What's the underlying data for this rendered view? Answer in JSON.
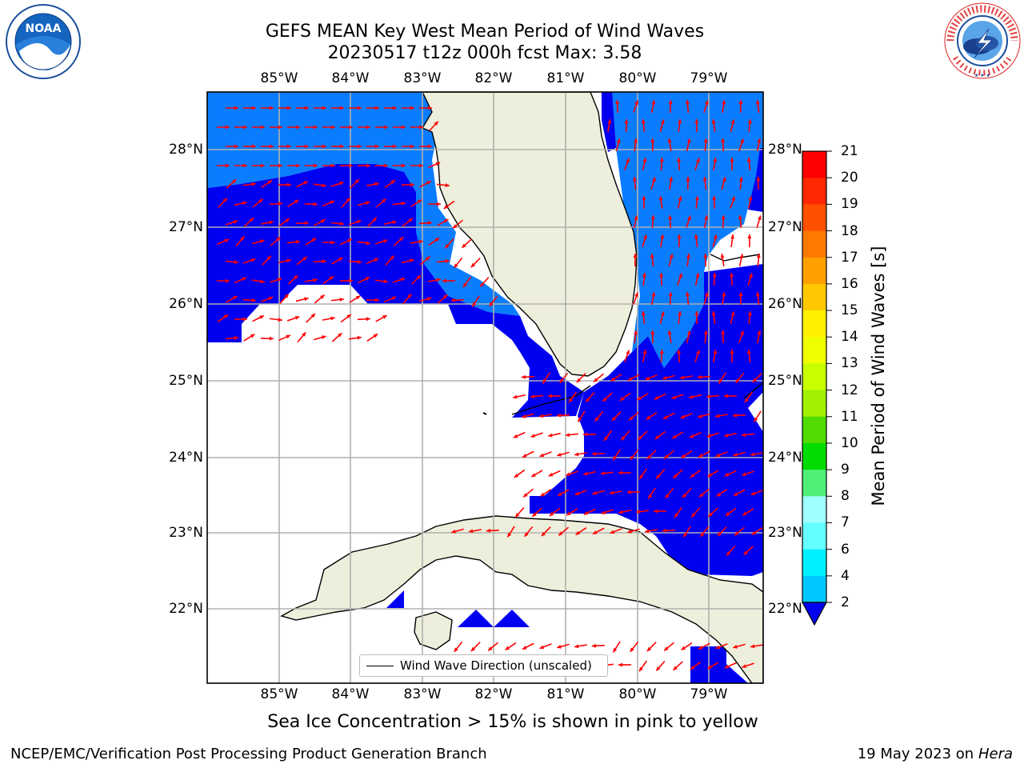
{
  "title": {
    "line1": "GEFS MEAN Key West Mean Period of Wind Waves",
    "line2": "20230517 t12z 000h fcst   Max: 3.58"
  },
  "map": {
    "lon_ticks": [
      "85°W",
      "84°W",
      "83°W",
      "82°W",
      "81°W",
      "80°W",
      "79°W"
    ],
    "lat_ticks": [
      "28°N",
      "27°N",
      "26°N",
      "25°N",
      "24°N",
      "23°N",
      "22°N"
    ],
    "legend": "Wind Wave Direction (unscaled)",
    "colors": {
      "land": "#eeeedc",
      "ocean_2_4": "#0a7dff",
      "ocean_lt_2": "#0000f0",
      "arrows": "#ff0000",
      "grid": "#b0b0b0"
    }
  },
  "colorbar": {
    "title": "Mean Period of Wind Waves [s]",
    "labels": [
      "21",
      "20",
      "19",
      "18",
      "17",
      "16",
      "15",
      "14",
      "13",
      "12",
      "11",
      "10",
      "9",
      "8",
      "7",
      "6",
      "4",
      "2"
    ],
    "colors": [
      "#ff0000",
      "#ff2800",
      "#ff5000",
      "#ff7800",
      "#ffa000",
      "#ffc800",
      "#fff000",
      "#f0ff00",
      "#c8ff00",
      "#a0f000",
      "#50dc00",
      "#00dc00",
      "#50f078",
      "#a0ffff",
      "#64ffff",
      "#00f0ff",
      "#00c8ff",
      "#0a7dff"
    ],
    "under_color": "#0000f0"
  },
  "note": "Sea Ice Concentration > 15% is shown in pink to yellow",
  "footer": {
    "left": "NCEP/EMC/Verification Post Processing Product Generation Branch",
    "right_prefix": "19 May 2023 on",
    "right_host": "Hera"
  },
  "logos": {
    "noaa_text": "NOAA",
    "nws_text": "NATIONAL WEATHER SERVICE"
  }
}
